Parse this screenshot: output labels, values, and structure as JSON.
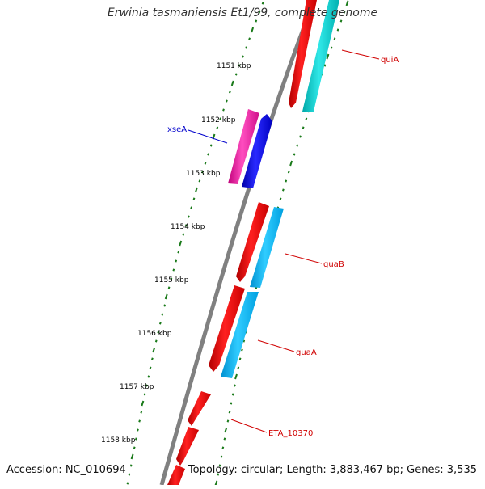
{
  "title": "Erwinia tasmaniensis Et1/99, complete genome",
  "footer": {
    "accession": "Accession: NC_010694",
    "summary": "Topology: circular; Length: 3,883,467 bp; Genes: 3,535"
  },
  "scale_labels": [
    "1151 kbp",
    "1152 kbp",
    "1153 kbp",
    "1154 kbp",
    "1155 kbp",
    "1156 kbp",
    "1157 kbp",
    "1158 kbp"
  ],
  "genes": [
    {
      "name": "quiA",
      "color": "#d00000"
    },
    {
      "name": "xseA",
      "color": "#0000cc"
    },
    {
      "name": "guaB",
      "color": "#d00000"
    },
    {
      "name": "guaA",
      "color": "#d00000"
    },
    {
      "name": "ETA_10370",
      "color": "#d00000"
    }
  ],
  "colors": {
    "forward_cds": "#ff0000",
    "reverse_cds_a": "#00cccc",
    "reverse_cds_b": "#00bbee",
    "xseA_forward": "#ff1aa3",
    "xseA_reverse": "#0000ff",
    "backbone": "#808080",
    "ticks": "#1a7a1a"
  }
}
